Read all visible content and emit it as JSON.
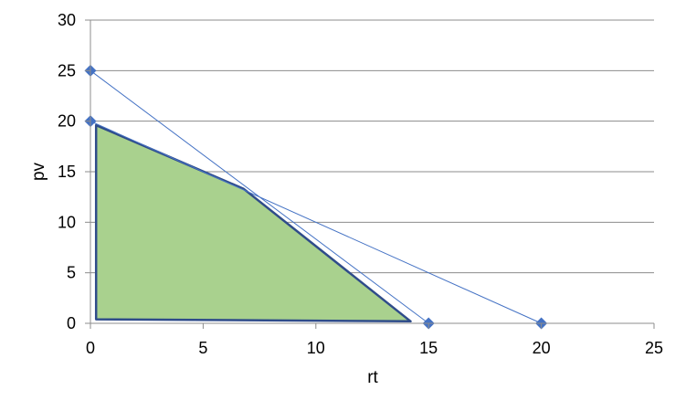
{
  "chart_data": {
    "type": "scatter",
    "title": "",
    "xlabel": "rt",
    "ylabel": "pv",
    "xlim": [
      0,
      25
    ],
    "ylim": [
      0,
      30
    ],
    "x_ticks": [
      0,
      5,
      10,
      15,
      20,
      25
    ],
    "y_ticks": [
      0,
      5,
      10,
      15,
      20,
      25,
      30
    ],
    "x_tick_labels": [
      "0",
      "5",
      "10",
      "15",
      "20",
      "25"
    ],
    "y_tick_labels": [
      "0",
      "5",
      "10",
      "15",
      "20",
      "25",
      "30"
    ],
    "grid": "horizontal",
    "legend": "none",
    "series": [
      {
        "points": [
          {
            "x": 0,
            "y": 25
          },
          {
            "x": 15,
            "y": 0
          }
        ],
        "color": "#4472c4",
        "marker": "diamond"
      },
      {
        "points": [
          {
            "x": 0,
            "y": 20
          },
          {
            "x": 20,
            "y": 0
          }
        ],
        "color": "#4472c4",
        "marker": "diamond"
      }
    ],
    "feasible_region": {
      "vertices": [
        {
          "x": 0.25,
          "y": 19.6
        },
        {
          "x": 6.8,
          "y": 13.3
        },
        {
          "x": 14.2,
          "y": 0.2
        },
        {
          "x": 0.25,
          "y": 0.4
        }
      ],
      "fill": "#a9d18e",
      "stroke": "#2f4c8a"
    }
  }
}
